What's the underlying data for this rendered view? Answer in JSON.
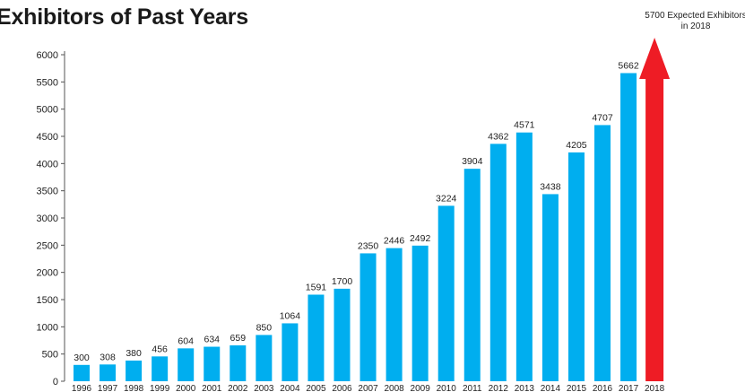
{
  "chart_data": {
    "type": "bar",
    "title": "Exhibitors of Past Years",
    "xlabel": "",
    "ylabel": "",
    "ylim": [
      0,
      6000
    ],
    "yticks": [
      0,
      500,
      1000,
      1500,
      2000,
      2500,
      3000,
      3500,
      4000,
      4500,
      5000,
      5500,
      6000
    ],
    "grid": false,
    "categories": [
      "1996",
      "1997",
      "1998",
      "1999",
      "2000",
      "2001",
      "2002",
      "2003",
      "2004",
      "2005",
      "2006",
      "2007",
      "2008",
      "2009",
      "2010",
      "2011",
      "2012",
      "2013",
      "2014",
      "2015",
      "2016",
      "2017",
      "2018"
    ],
    "series": [
      {
        "color": "#00aeef",
        "values": [
          300,
          308,
          380,
          456,
          604,
          634,
          659,
          850,
          1064,
          1591,
          1700,
          2350,
          2446,
          2492,
          3224,
          3904,
          4362,
          4571,
          3438,
          4205,
          4707,
          5662,
          null
        ]
      }
    ],
    "forecast": {
      "category": "2018",
      "value": 5700,
      "color": "#ee1c25",
      "note_line1": "5700 Expected Exhibitors",
      "note_line2": "in 2018"
    }
  }
}
